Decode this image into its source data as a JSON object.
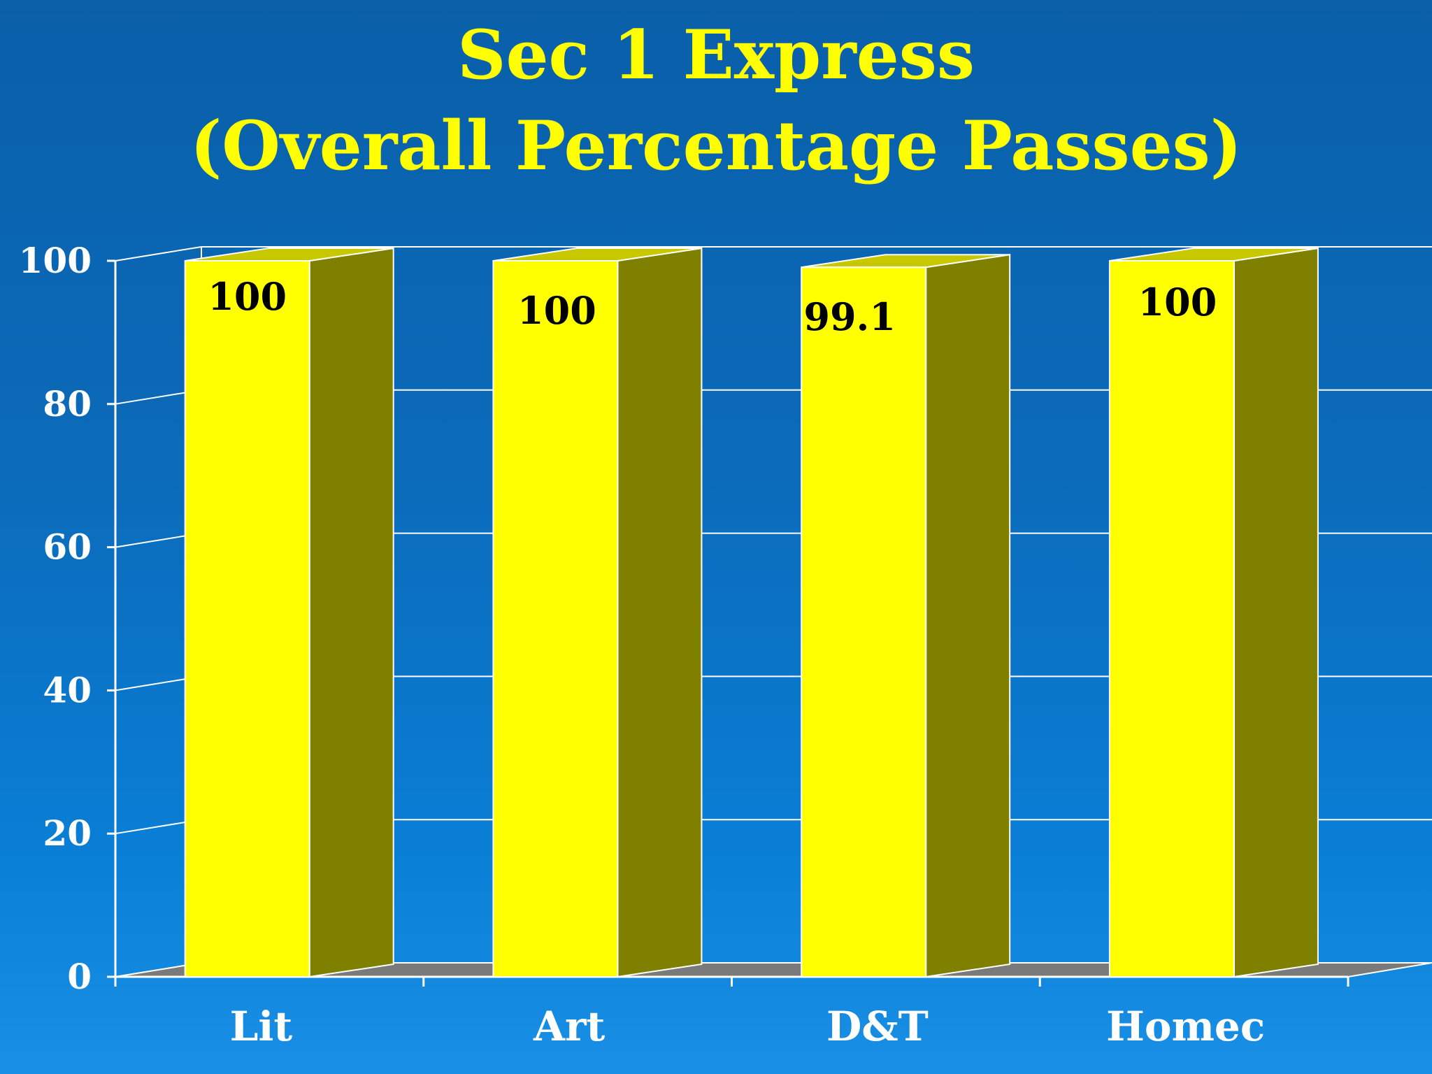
{
  "title_line1": "Sec 1 Express",
  "title_line2": "(Overall Percentage Passes)",
  "chart_data": {
    "type": "bar",
    "title": "Sec 1 Express (Overall Percentage Passes)",
    "categories": [
      "Lit",
      "Art",
      "D&T",
      "Homec"
    ],
    "values": [
      100,
      100,
      99.1,
      100
    ],
    "data_labels": [
      "100",
      "100",
      "99.1",
      "100"
    ],
    "yticks": [
      "0",
      "20",
      "40",
      "60",
      "80",
      "100"
    ],
    "ylim": [
      0,
      100
    ],
    "xlabel": "",
    "ylabel": "",
    "grid": true,
    "legend": "none",
    "colors": {
      "bar_front": "#ffff00",
      "bar_side": "#808000",
      "bar_top": "#c8c800",
      "grid": "#ffffff",
      "floor": "#7a7a7a"
    }
  }
}
